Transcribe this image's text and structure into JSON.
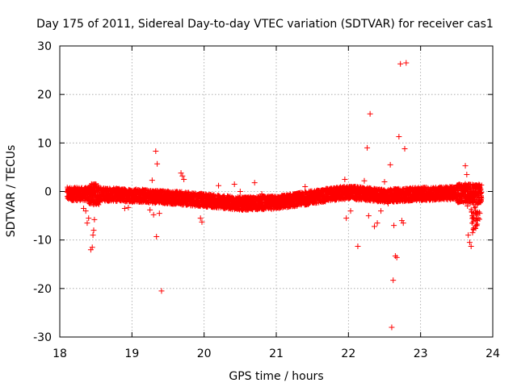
{
  "chart_data": {
    "type": "scatter",
    "title": "Day 175 of 2011, Sidereal Day-to-day VTEC variation (SDTVAR) for receiver cas1",
    "xlabel": "GPS time / hours",
    "ylabel": "SDTVAR / TECUs",
    "xlim": [
      18,
      24
    ],
    "ylim": [
      -30,
      30
    ],
    "xticks": [
      "18",
      "19",
      "20",
      "21",
      "22",
      "23",
      "24"
    ],
    "yticks": [
      "30",
      "20",
      "10",
      "0",
      "-10",
      "-20",
      "-30"
    ],
    "xtick_values": [
      18,
      19,
      20,
      21,
      22,
      23,
      24
    ],
    "ytick_values": [
      30,
      20,
      10,
      0,
      -10,
      -20,
      -30
    ],
    "grid": true,
    "marker": "plus",
    "color": "#ff0000",
    "band": {
      "x_start": 18.1,
      "x_end": 23.85,
      "center": [
        [
          18.1,
          -0.5
        ],
        [
          18.6,
          -0.6
        ],
        [
          19.0,
          -0.8
        ],
        [
          19.5,
          -1.2
        ],
        [
          20.0,
          -1.8
        ],
        [
          20.5,
          -2.5
        ],
        [
          21.0,
          -2.3
        ],
        [
          21.5,
          -1.2
        ],
        [
          21.8,
          -0.5
        ],
        [
          22.0,
          -0.2
        ],
        [
          22.5,
          -0.9
        ],
        [
          23.0,
          -0.5
        ],
        [
          23.5,
          -0.3
        ],
        [
          23.85,
          -0.5
        ]
      ]
    },
    "points": [
      {
        "x": 18.38,
        "y": -6.5
      },
      {
        "x": 18.4,
        "y": -5.5
      },
      {
        "x": 18.43,
        "y": -12.0
      },
      {
        "x": 18.45,
        "y": -11.5
      },
      {
        "x": 18.46,
        "y": -9.0
      },
      {
        "x": 18.47,
        "y": -8.0
      },
      {
        "x": 18.48,
        "y": -5.8
      },
      {
        "x": 18.36,
        "y": -4.0
      },
      {
        "x": 18.33,
        "y": -3.5
      },
      {
        "x": 18.9,
        "y": -3.5
      },
      {
        "x": 18.95,
        "y": -3.3
      },
      {
        "x": 19.28,
        "y": 2.3
      },
      {
        "x": 19.3,
        "y": -4.8
      },
      {
        "x": 19.33,
        "y": 8.3
      },
      {
        "x": 19.35,
        "y": 5.7
      },
      {
        "x": 19.38,
        "y": -4.5
      },
      {
        "x": 19.34,
        "y": -9.3
      },
      {
        "x": 19.41,
        "y": -20.5
      },
      {
        "x": 19.25,
        "y": -3.8
      },
      {
        "x": 19.68,
        "y": 3.8
      },
      {
        "x": 19.7,
        "y": 3.2
      },
      {
        "x": 19.72,
        "y": 2.5
      },
      {
        "x": 19.95,
        "y": -5.5
      },
      {
        "x": 19.97,
        "y": -6.3
      },
      {
        "x": 20.2,
        "y": 1.2
      },
      {
        "x": 20.42,
        "y": 1.5
      },
      {
        "x": 20.5,
        "y": 0.0
      },
      {
        "x": 20.7,
        "y": 1.8
      },
      {
        "x": 20.8,
        "y": -0.5
      },
      {
        "x": 21.4,
        "y": 1.0
      },
      {
        "x": 21.95,
        "y": 2.5
      },
      {
        "x": 21.97,
        "y": -5.5
      },
      {
        "x": 22.03,
        "y": -4.0
      },
      {
        "x": 22.13,
        "y": -11.3
      },
      {
        "x": 22.22,
        "y": 2.2
      },
      {
        "x": 22.26,
        "y": 9.0
      },
      {
        "x": 22.3,
        "y": 16.0
      },
      {
        "x": 22.28,
        "y": -5.0
      },
      {
        "x": 22.36,
        "y": -7.2
      },
      {
        "x": 22.4,
        "y": -6.5
      },
      {
        "x": 22.45,
        "y": -4.0
      },
      {
        "x": 22.58,
        "y": 5.5
      },
      {
        "x": 22.6,
        "y": -28.0
      },
      {
        "x": 22.62,
        "y": -18.3
      },
      {
        "x": 22.65,
        "y": -13.3
      },
      {
        "x": 22.67,
        "y": -13.6
      },
      {
        "x": 22.63,
        "y": -7.0
      },
      {
        "x": 22.7,
        "y": 11.3
      },
      {
        "x": 22.72,
        "y": 26.3
      },
      {
        "x": 22.74,
        "y": -6.0
      },
      {
        "x": 22.76,
        "y": -6.5
      },
      {
        "x": 22.78,
        "y": 8.8
      },
      {
        "x": 22.8,
        "y": 26.5
      },
      {
        "x": 22.55,
        "y": -2.5
      },
      {
        "x": 22.5,
        "y": 2.0
      },
      {
        "x": 23.62,
        "y": 5.3
      },
      {
        "x": 23.64,
        "y": 3.5
      },
      {
        "x": 23.66,
        "y": -9.0
      },
      {
        "x": 23.68,
        "y": -10.5
      },
      {
        "x": 23.7,
        "y": -11.3
      },
      {
        "x": 23.72,
        "y": -8.5
      },
      {
        "x": 23.74,
        "y": -7.5
      },
      {
        "x": 23.78,
        "y": -6.0
      },
      {
        "x": 23.8,
        "y": -5.5
      },
      {
        "x": 23.82,
        "y": -4.5
      },
      {
        "x": 23.65,
        "y": -3.0
      },
      {
        "x": 23.76,
        "y": -4.0
      }
    ]
  }
}
